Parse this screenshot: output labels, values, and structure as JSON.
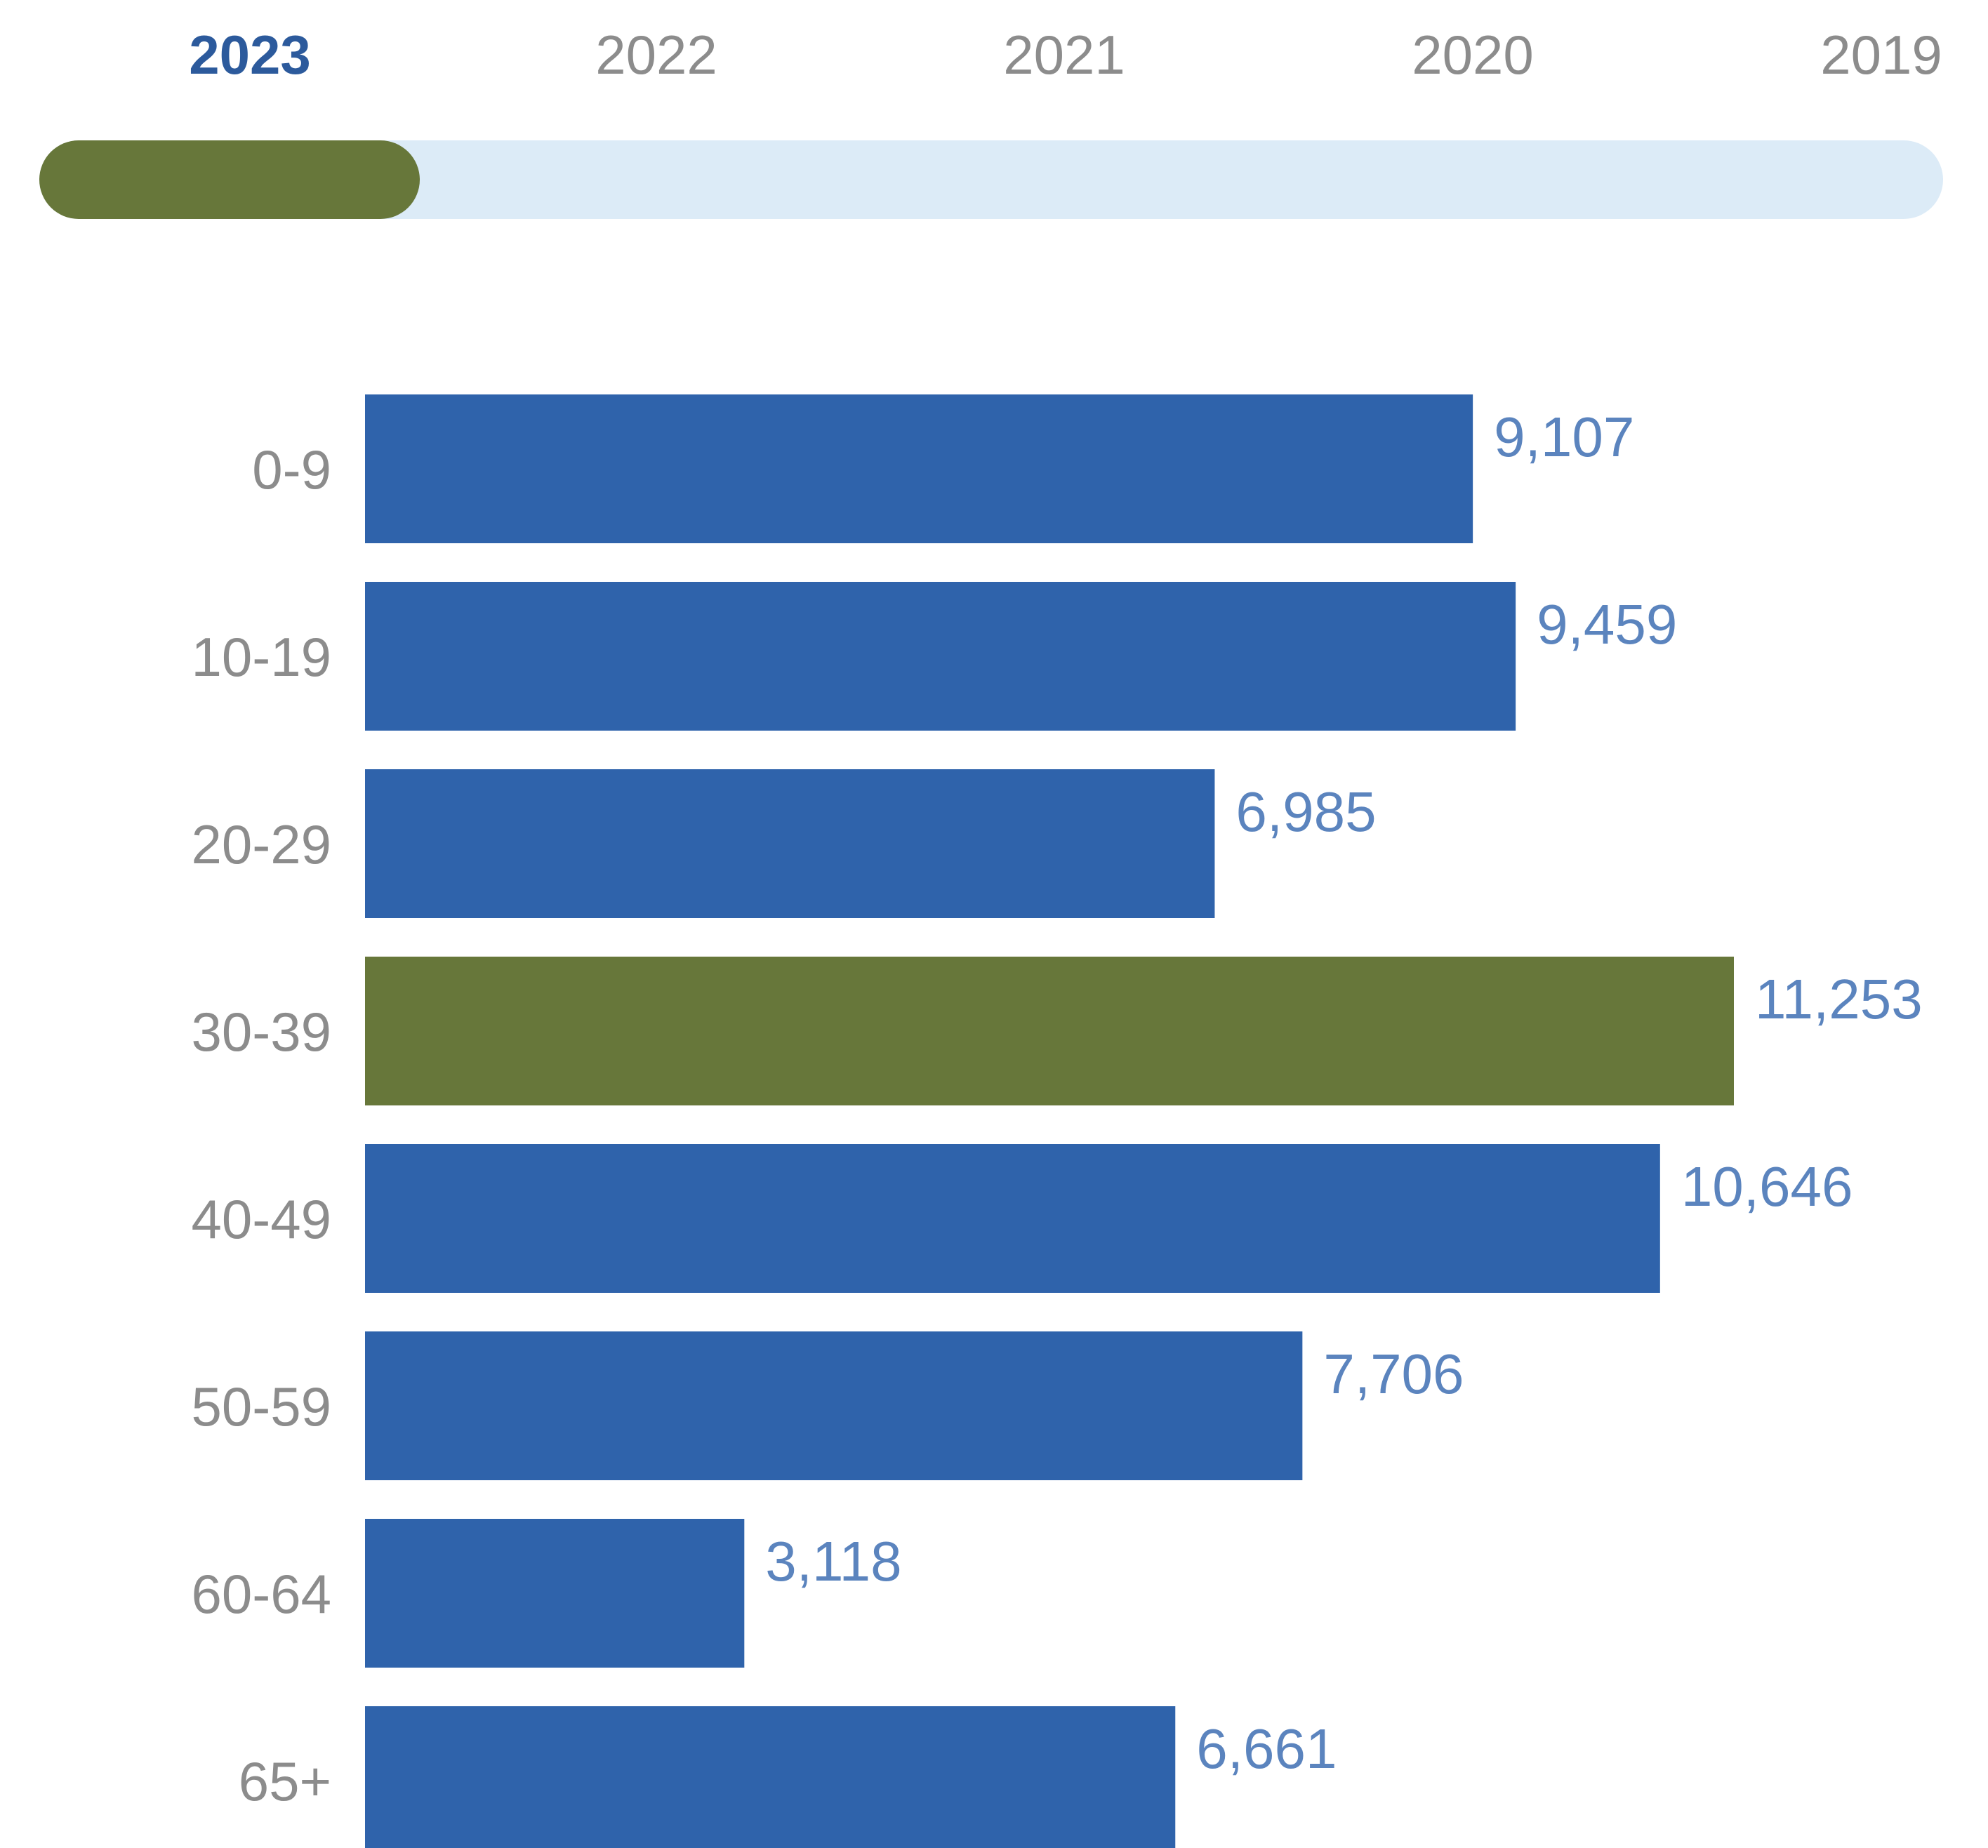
{
  "years": {
    "items": [
      "2023",
      "2022",
      "2021",
      "2020",
      "2019"
    ],
    "selected_index": 0,
    "selected_color": "#67773a",
    "track_color": "#dcebf7"
  },
  "chart_data": {
    "type": "bar",
    "orientation": "horizontal",
    "categories": [
      "0-9",
      "10-19",
      "20-29",
      "30-39",
      "40-49",
      "50-59",
      "60-64",
      "65+"
    ],
    "values": [
      9107,
      9459,
      6985,
      11253,
      10646,
      7706,
      3118,
      6661
    ],
    "value_labels": [
      "9,107",
      "9,459",
      "6,985",
      "11,253",
      "10,646",
      "7,706",
      "3,118",
      "6,661"
    ],
    "highlight_index": 3,
    "bar_color": "#2f63ab",
    "highlight_color": "#67773a",
    "label_color": "#5b84be",
    "category_color": "#8c8c8c",
    "grid": false,
    "xlim": [
      0,
      11253
    ]
  }
}
